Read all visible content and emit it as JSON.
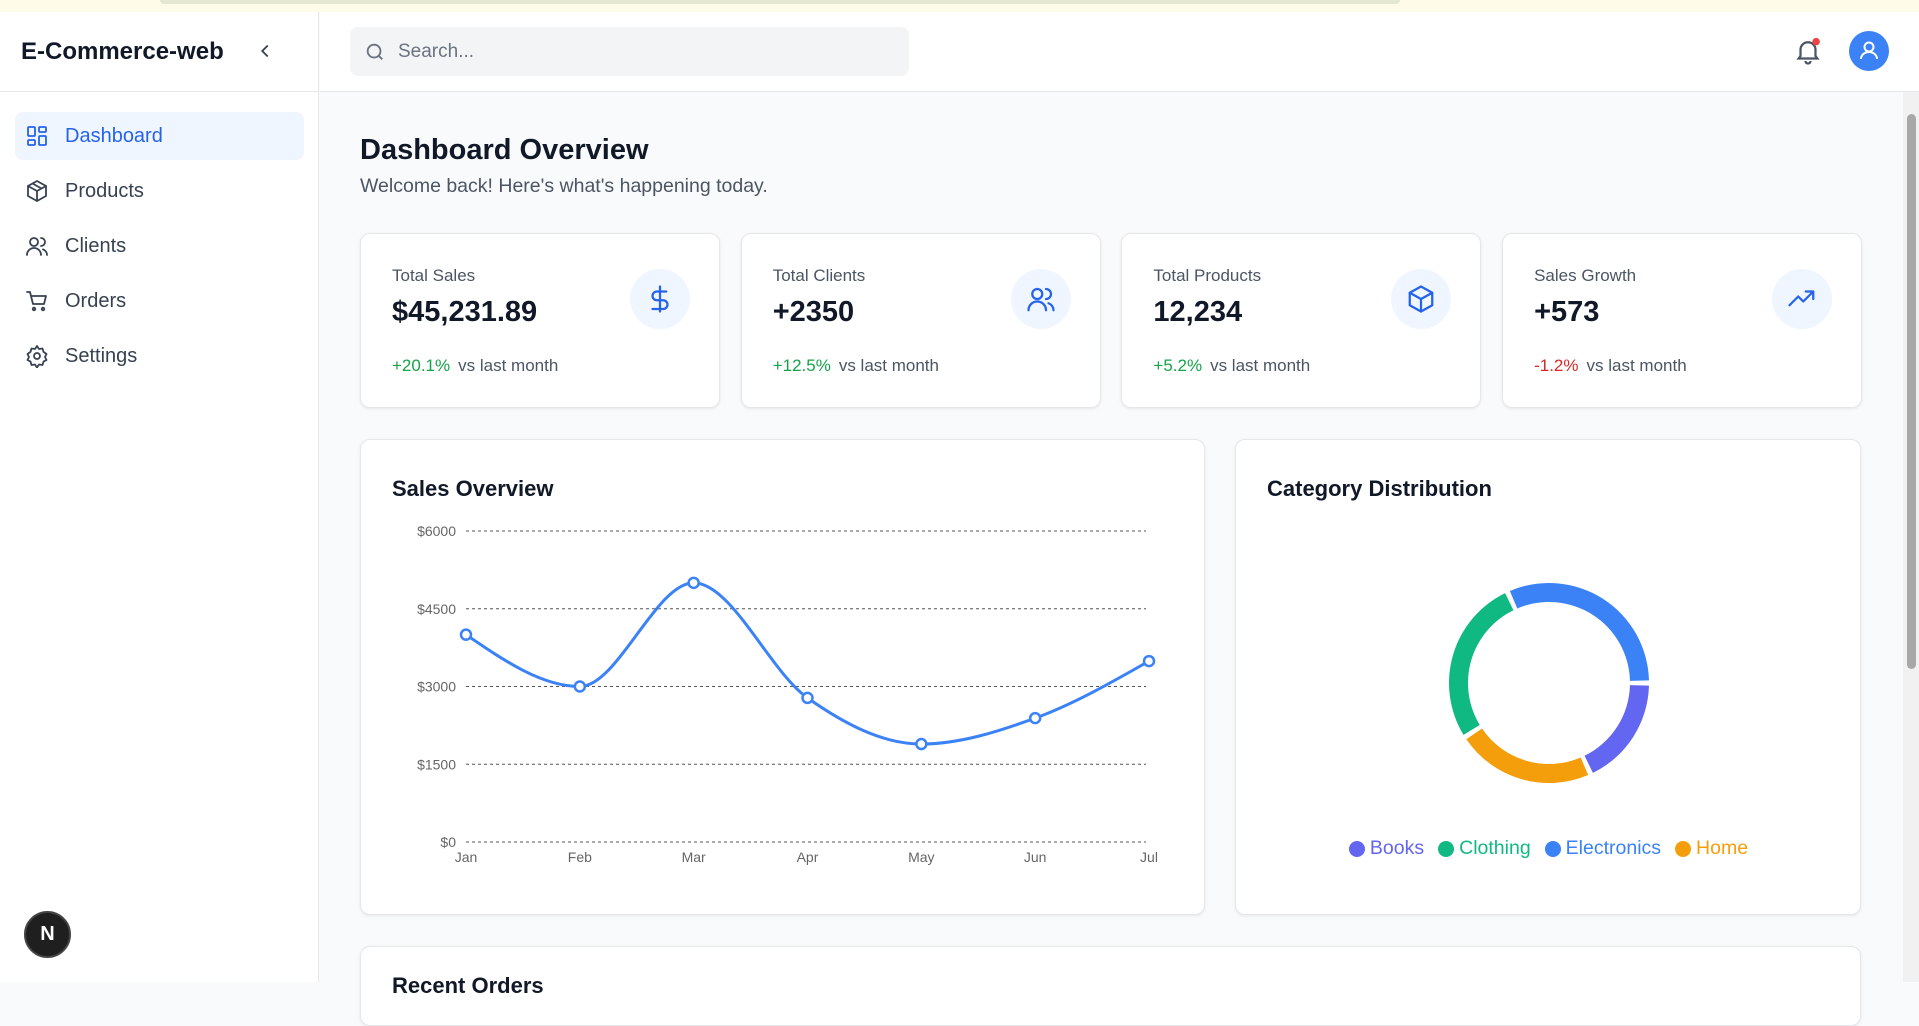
{
  "sidebar": {
    "brand": "E-Commerce-web",
    "nav": [
      "Dashboard",
      "Products",
      "Clients",
      "Orders",
      "Settings"
    ]
  },
  "header": {
    "search_placeholder": "Search..."
  },
  "page": {
    "title": "Dashboard Overview",
    "subtitle": "Welcome back! Here's what's happening today."
  },
  "stats": [
    {
      "label": "Total Sales",
      "value": "$45,231.89",
      "change": "+20.1%",
      "note": "vs last month"
    },
    {
      "label": "Total Clients",
      "value": "+2350",
      "change": "+12.5%",
      "note": "vs last month"
    },
    {
      "label": "Total Products",
      "value": "12,234",
      "change": "+5.2%",
      "note": "vs last month"
    },
    {
      "label": "Sales Growth",
      "value": "+573",
      "change": "-1.2%",
      "note": "vs last month"
    }
  ],
  "chart_data": [
    {
      "type": "line",
      "title": "Sales Overview",
      "categories": [
        "Jan",
        "Feb",
        "Mar",
        "Apr",
        "May",
        "Jun",
        "Jul"
      ],
      "series": [
        {
          "name": "Sales",
          "color": "#3b82f6",
          "values": [
            4000,
            3000,
            5000,
            2780,
            1890,
            2390,
            3490
          ]
        }
      ],
      "ylim": [
        0,
        6000
      ],
      "yticks": [
        {
          "value": 0,
          "label": "$0"
        },
        {
          "value": 1500,
          "label": "$1500"
        },
        {
          "value": 3000,
          "label": "$3000"
        },
        {
          "value": 4500,
          "label": "$4500"
        },
        {
          "value": 6000,
          "label": "$6000"
        }
      ],
      "grid": true
    },
    {
      "type": "pie",
      "title": "Category Distribution",
      "categories": [
        "Electronics",
        "Clothing",
        "Home",
        "Books"
      ],
      "values": [
        35,
        30,
        25,
        20
      ],
      "colors": [
        "#3b82f6",
        "#10b981",
        "#f59e0b",
        "#6366f1"
      ],
      "donut": true,
      "legend": "bottom"
    }
  ],
  "recent_orders": {
    "title": "Recent Orders"
  },
  "badge": "N"
}
